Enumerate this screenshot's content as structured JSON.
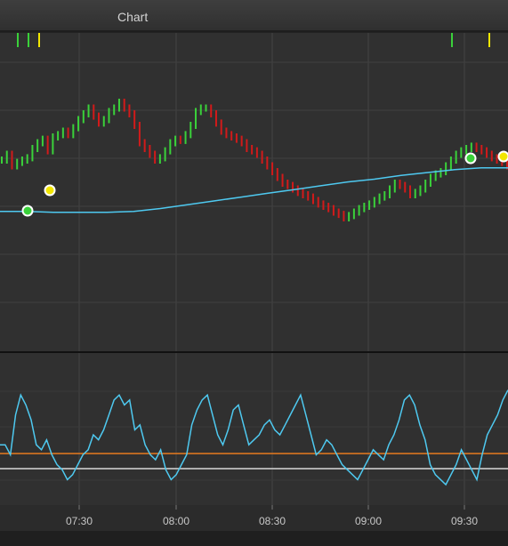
{
  "window": {
    "title": "Chart"
  },
  "chart_data": [
    {
      "type": "candlestick",
      "title": "",
      "panel": "price",
      "colors": {
        "up": "#3ad13a",
        "down": "#d21a1a",
        "moving_average": "#4ec9f0",
        "buy_marker": "#3ad13a",
        "sell_marker": "#f2e600"
      },
      "x_tick_labels": [
        "07:30",
        "08:00",
        "08:30",
        "09:00",
        "09:30"
      ],
      "moving_average_shape": [
        0.56,
        0.56,
        0.57,
        0.57,
        0.57,
        0.56,
        0.53,
        0.49,
        0.45,
        0.41,
        0.37,
        0.33,
        0.29,
        0.25,
        0.22,
        0.18,
        0.15,
        0.12,
        0.1,
        0.1
      ],
      "close_shape": [
        0.5,
        0.45,
        0.55,
        0.52,
        0.5,
        0.48,
        0.4,
        0.35,
        0.32,
        0.42,
        0.3,
        0.28,
        0.25,
        0.28,
        0.22,
        0.15,
        0.1,
        0.05,
        0.12,
        0.18,
        0.15,
        0.08,
        0.05,
        0.0,
        0.05,
        0.1,
        0.2,
        0.35,
        0.4,
        0.45,
        0.5,
        0.48,
        0.42,
        0.35,
        0.32,
        0.33,
        0.28,
        0.2,
        0.08,
        0.05,
        0.05,
        0.1,
        0.18,
        0.25,
        0.28,
        0.3,
        0.32,
        0.35,
        0.4,
        0.42,
        0.45,
        0.5,
        0.55,
        0.6,
        0.65,
        0.7,
        0.72,
        0.75,
        0.78,
        0.8,
        0.82,
        0.85,
        0.88,
        0.9,
        0.92,
        0.95,
        0.97,
        1.0,
        0.98,
        0.95,
        0.92,
        0.9,
        0.88,
        0.85,
        0.82,
        0.8,
        0.75,
        0.7,
        0.72,
        0.75,
        0.8,
        0.78,
        0.75,
        0.7,
        0.65,
        0.62,
        0.6,
        0.55,
        0.5,
        0.45,
        0.42,
        0.4,
        0.38,
        0.4,
        0.42,
        0.45,
        0.48,
        0.5,
        0.52,
        0.55
      ],
      "signals_top": [
        {
          "x_index": 0,
          "kind": "buy"
        },
        {
          "x_index": 1,
          "kind": "buy"
        },
        {
          "x_index": 2,
          "kind": "sell"
        },
        {
          "x_index": 3,
          "kind": "buy"
        },
        {
          "x_index": 4,
          "kind": "sell"
        }
      ]
    },
    {
      "type": "line",
      "title": "",
      "panel": "oscillator",
      "colors": {
        "line": "#4ec9f0",
        "upper_level": "#e87a1f",
        "lower_level": "#d8d8d8"
      },
      "oscillator_shape": [
        0.4,
        0.4,
        0.3,
        0.7,
        0.9,
        0.8,
        0.65,
        0.4,
        0.35,
        0.45,
        0.3,
        0.2,
        0.15,
        0.05,
        0.1,
        0.2,
        0.3,
        0.35,
        0.5,
        0.45,
        0.55,
        0.7,
        0.85,
        0.9,
        0.8,
        0.85,
        0.55,
        0.6,
        0.4,
        0.3,
        0.25,
        0.35,
        0.15,
        0.05,
        0.1,
        0.2,
        0.3,
        0.6,
        0.75,
        0.85,
        0.9,
        0.7,
        0.5,
        0.4,
        0.55,
        0.75,
        0.8,
        0.6,
        0.4,
        0.45,
        0.5,
        0.6,
        0.65,
        0.55,
        0.5,
        0.6,
        0.7,
        0.8,
        0.9,
        0.7,
        0.5,
        0.3,
        0.35,
        0.45,
        0.4,
        0.3,
        0.2,
        0.15,
        0.1,
        0.05,
        0.15,
        0.25,
        0.35,
        0.3,
        0.25,
        0.4,
        0.5,
        0.65,
        0.85,
        0.9,
        0.8,
        0.6,
        0.45,
        0.2,
        0.1,
        0.05,
        0.0,
        0.1,
        0.2,
        0.35,
        0.25,
        0.15,
        0.05,
        0.3,
        0.5,
        0.6,
        0.7,
        0.85,
        0.95
      ]
    }
  ]
}
